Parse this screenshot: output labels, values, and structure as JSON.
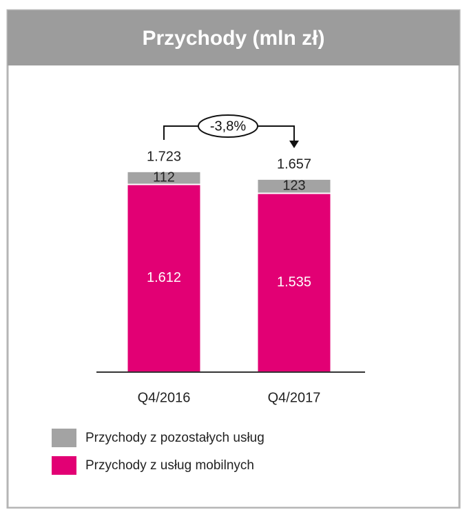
{
  "chart_data": {
    "type": "bar",
    "stacked": true,
    "title": "Przychody (mln zł)",
    "categories": [
      "Q4/2016",
      "Q4/2017"
    ],
    "series": [
      {
        "name": "Przychody z usług mobilnych",
        "color": "#e20074",
        "values": [
          1612,
          1535
        ],
        "value_labels": [
          "1.612",
          "1.535"
        ]
      },
      {
        "name": "Przychody z pozostałych usług",
        "color": "#a3a3a3",
        "values": [
          112,
          123
        ]
      }
    ],
    "totals": {
      "values": [
        1723,
        1657
      ],
      "value_labels": [
        "1.723",
        "1.657"
      ]
    },
    "annotation": "-3,8%"
  }
}
